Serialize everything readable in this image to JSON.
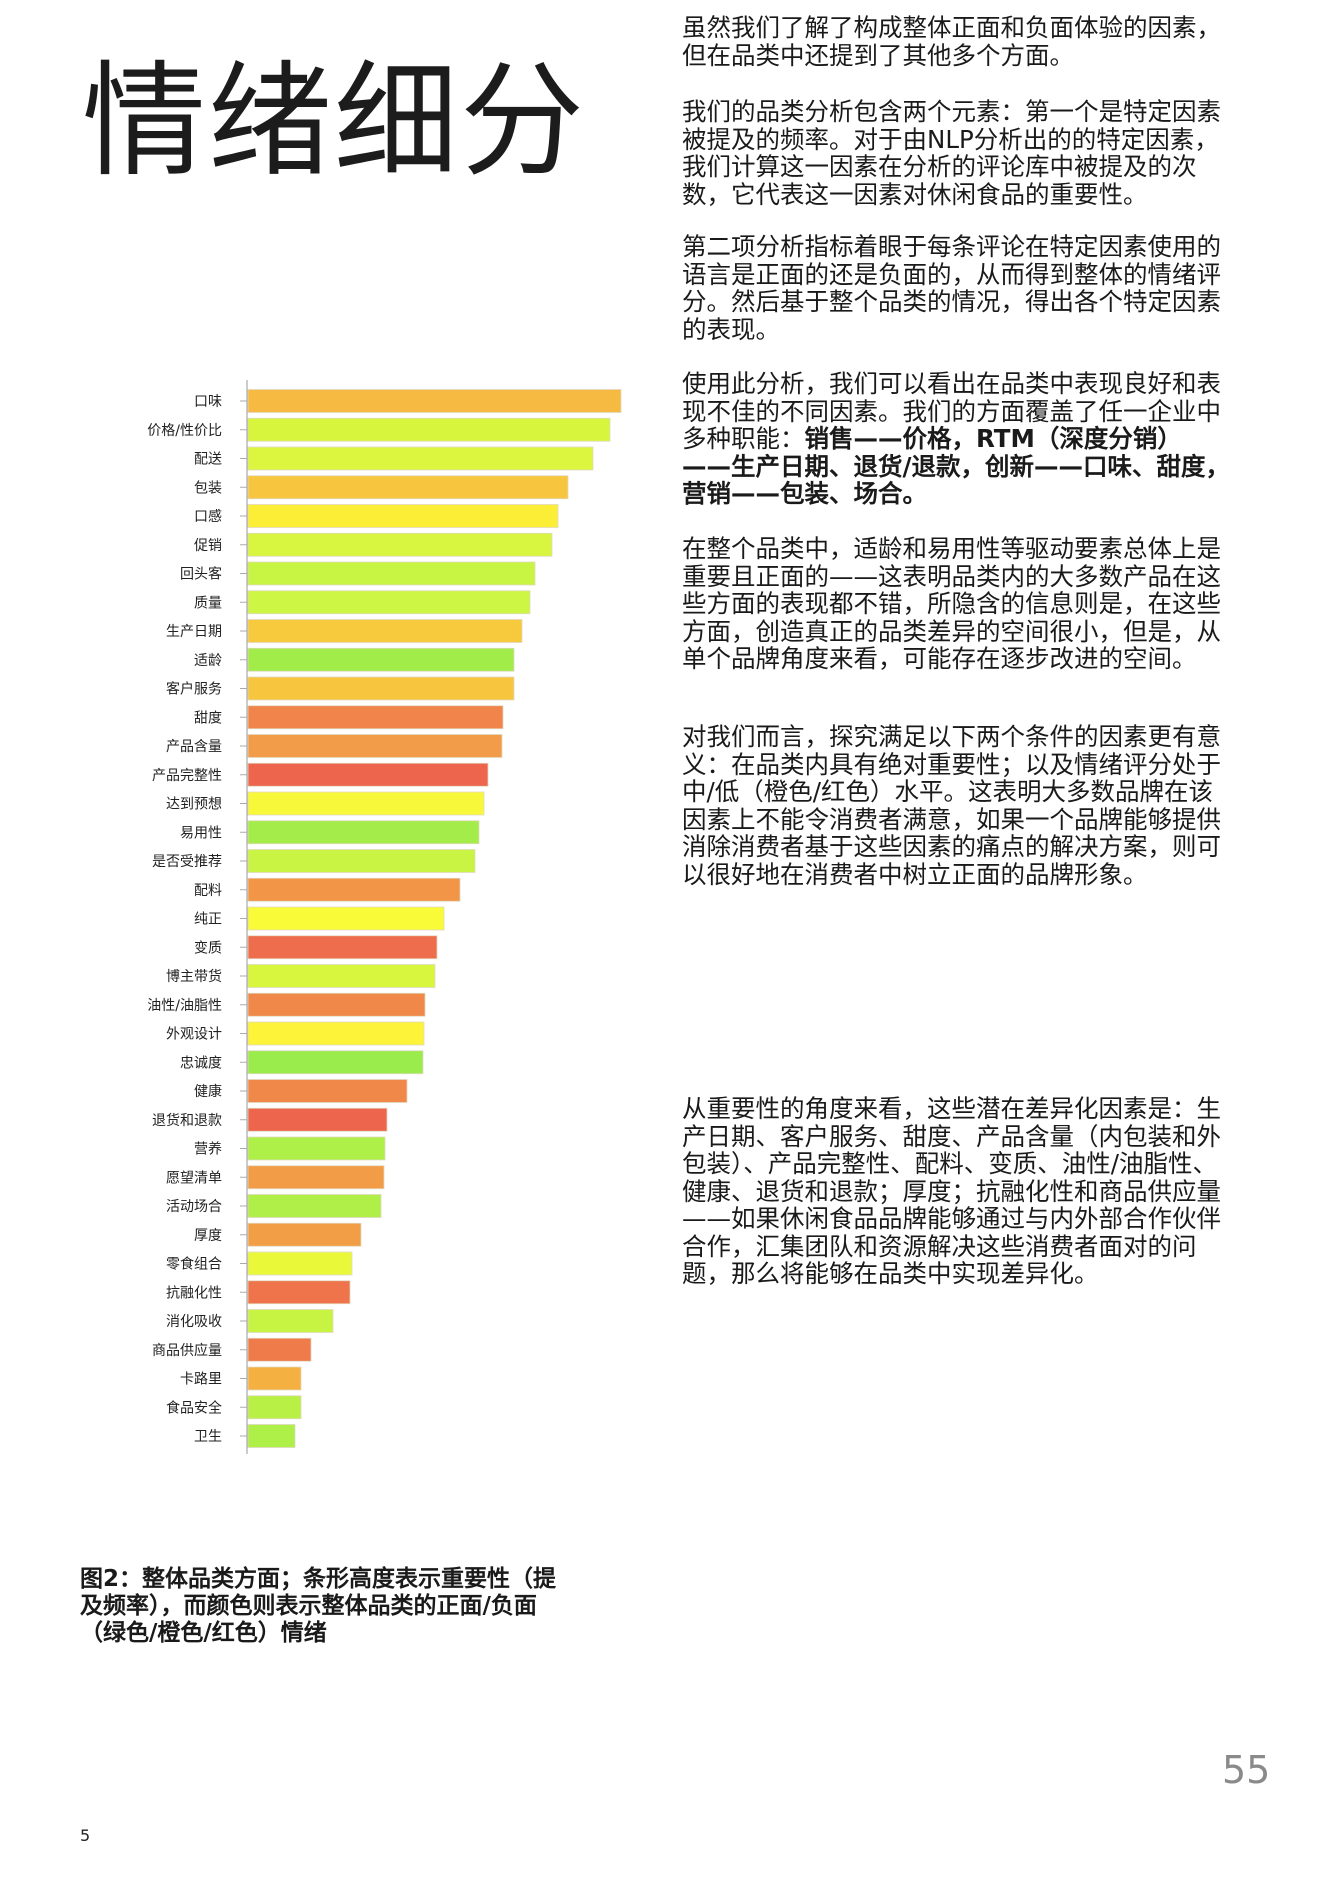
{
  "page": {
    "title": "情绪细分",
    "page_number": "55",
    "footer_number": "5"
  },
  "figure": {
    "caption": "图2：整体品类方面；条形高度表示重要性（提及频率），而颜色则表示整体品类的正面/负面（绿色/橙色/红色）情绪"
  },
  "chart_data": {
    "type": "bar",
    "orientation": "horizontal",
    "value_note_unit": "relative mention frequency (no axis printed)",
    "grid": false,
    "categories": [
      "口味",
      "价格/性价比",
      "配送",
      "包装",
      "口感",
      "促销",
      "回头客",
      "质量",
      "生产日期",
      "适龄",
      "客户服务",
      "甜度",
      "产品含量",
      "产品完整性",
      "达到预想",
      "易用性",
      "是否受推荐",
      "配料",
      "纯正",
      "变质",
      "博主带货",
      "油性/油脂性",
      "外观设计",
      "忠诚度",
      "健康",
      "退货和退款",
      "营养",
      "愿望清单",
      "活动场合",
      "厚度",
      "零食组合",
      "抗融化性",
      "消化吸收",
      "商品供应量",
      "卡路里",
      "食品安全",
      "卫生"
    ],
    "values": [
      373,
      362,
      345,
      320,
      310,
      304,
      287,
      282,
      274,
      266,
      266,
      255,
      254,
      240,
      236,
      231,
      227,
      212,
      196,
      189,
      187,
      177,
      176,
      175,
      159,
      139,
      137,
      136,
      133,
      113,
      104,
      102,
      85,
      63,
      53,
      53,
      47
    ],
    "colors": [
      "#f6b942",
      "#d8f53e",
      "#dcf53e",
      "#f7c63e",
      "#fcee36",
      "#d8f540",
      "#c8f443",
      "#cdf543",
      "#f7c93d",
      "#a2ec4a",
      "#f7c53e",
      "#f0844a",
      "#f29b48",
      "#ec654c",
      "#f8f83a",
      "#a3ec4a",
      "#c9f444",
      "#f29546",
      "#f9fa38",
      "#ee6d4c",
      "#d9f63e",
      "#f08849",
      "#fdf338",
      "#9aeb4c",
      "#f08849",
      "#ec654c",
      "#aeef48",
      "#f29c47",
      "#b0ef48",
      "#f29e47",
      "#eaf83a",
      "#ef744b",
      "#c7f443",
      "#ef7a4a",
      "#f5b042",
      "#b8f046",
      "#aeef48"
    ]
  },
  "body": {
    "p1": "虽然我们了解了构成整体正面和负面体验的因素，但在品类中还提到了其他多个方面。",
    "p2": "我们的品类分析包含两个元素：第一个是特定因素被提及的频率。对于由NLP分析出的的特定因素，我们计算这一因素在分析的评论库中被提及的次数，它代表这一因素对休闲食品的重要性。",
    "p3": "第二项分析指标着眼于每条评论在特定因素使用的语言是正面的还是负面的，从而得到整体的情绪评分。然后基于整个品类的情况，得出各个特定因素的表现。",
    "p4_plain": "使用此分析，我们可以看出在品类中表现良好和表现不佳的不同因素。我们的方面覆盖了任一企业中多种职能：",
    "p4_bold": "销售——价格，RTM（深度分销）——生产日期、退货/退款，创新——口味、甜度，营销——包装、场合。",
    "p5": "在整个品类中，适龄和易用性等驱动要素总体上是重要且正面的——这表明品类内的大多数产品在这些方面的表现都不错，所隐含的信息则是，在这些方面，创造真正的品类差异的空间很小，但是，从单个品牌角度来看，可能存在逐步改进的空间。",
    "p6": "对我们而言，探究满足以下两个条件的因素更有意义：在品类内具有绝对重要性；以及情绪评分处于中/低（橙色/红色）水平。这表明大多数品牌在该因素上不能令消费者满意，如果一个品牌能够提供消除消费者基于这些因素的痛点的解决方案，则可以很好地在消费者中树立正面的品牌形象。",
    "p7": "从重要性的角度来看，这些潜在差异化因素是：生产日期、客户服务、甜度、产品含量（内包装和外包装）、产品完整性、配料、变质、油性/油脂性、健康、退货和退款；厚度；抗融化性和商品供应量——如果休闲食品品牌能够通过与内外部合作伙伴合作，汇集团队和资源解决这些消费者面对的问题，那么将能够在品类中实现差异化。"
  }
}
